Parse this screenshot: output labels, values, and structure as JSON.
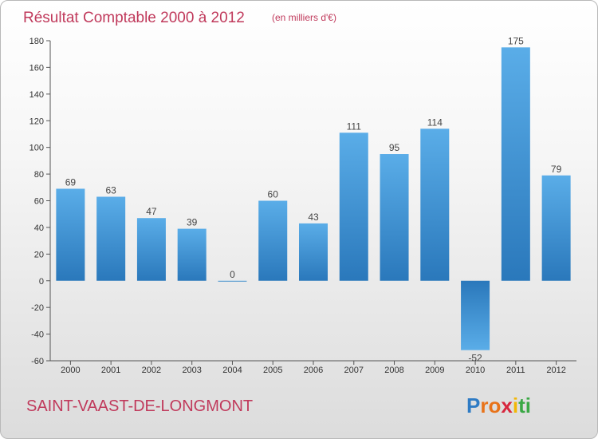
{
  "chart_data": {
    "type": "bar",
    "title": "Résultat Comptable 2000 à 2012",
    "subtitle": "(en milliers d'€)",
    "categories": [
      "2000",
      "2001",
      "2002",
      "2003",
      "2004",
      "2005",
      "2006",
      "2007",
      "2008",
      "2009",
      "2010",
      "2011",
      "2012"
    ],
    "values": [
      69,
      63,
      47,
      39,
      0,
      60,
      43,
      111,
      95,
      114,
      -52,
      175,
      79
    ],
    "yticks": [
      "180",
      "160",
      "140",
      "120",
      "100",
      "80",
      "60",
      "40",
      "20",
      "0",
      "-20",
      "-40",
      "-60"
    ],
    "ylim": [
      -60,
      180
    ],
    "grid": false,
    "bar_color": "#3a8fd6",
    "title_color": "#c0395b"
  },
  "footer": {
    "town": "SAINT-VAAST-DE-LONGMONT",
    "logo_letters": [
      "P",
      "r",
      "o",
      "x",
      "i",
      "t",
      "i"
    ],
    "logo_colors": [
      "#2e7bc4",
      "#e8731a",
      "#e8731a",
      "#d7263d",
      "#f2b705",
      "#3aa845",
      "#3aa845"
    ]
  }
}
